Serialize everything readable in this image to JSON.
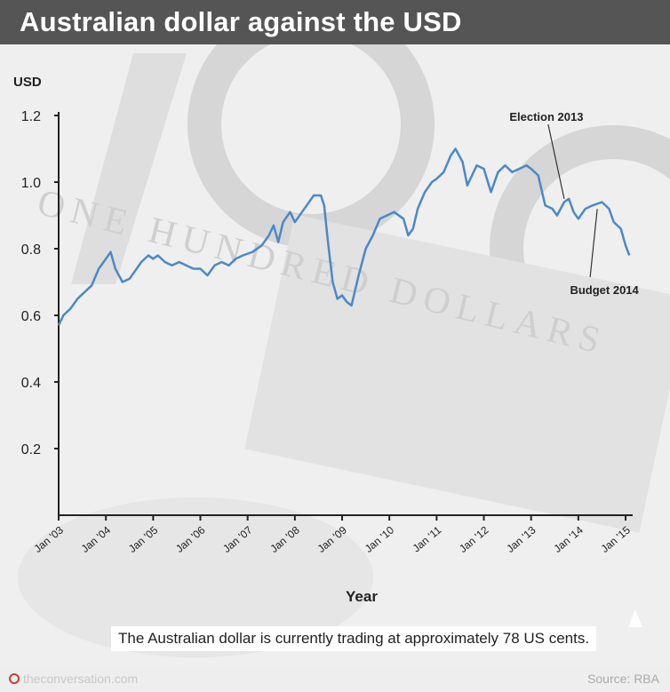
{
  "header": {
    "title": "Australian dollar against the USD"
  },
  "callout": {
    "text": "The Australian dollar is currently trading at approximately 78 US cents."
  },
  "footer": {
    "brand": "theconversation.com",
    "source": "Source: RBA",
    "brand_color": "#d33a2c"
  },
  "background_text": {
    "line1": "ONE HUNDRED DOLLARS"
  },
  "chart_data": {
    "type": "line",
    "ylabel": "USD",
    "xlabel": "Year",
    "ylim": [
      0,
      1.2
    ],
    "yticks": [
      "0.2",
      "0.4",
      "0.6",
      "0.8",
      "1.0",
      "1.2"
    ],
    "xticks": [
      "Jan '03",
      "Jan '04",
      "Jan '05",
      "Jan '06",
      "Jan '07",
      "Jan '08",
      "Jan '09",
      "Jan '10",
      "Jan '11",
      "Jan '12",
      "Jan '13",
      "Jan '14",
      "Jan '15"
    ],
    "line_color": "#4a89c8",
    "annotations": [
      {
        "text": "Election 2013",
        "x": 2013.7,
        "y": 0.95
      },
      {
        "text": "Budget 2014",
        "x": 2014.4,
        "y": 0.93
      }
    ],
    "series": [
      {
        "x": [
          2003.0,
          2003.1,
          2003.25,
          2003.4,
          2003.55,
          2003.7,
          2003.85,
          2004.0,
          2004.1,
          2004.2,
          2004.35,
          2004.5,
          2004.6,
          2004.75,
          2004.9,
          2005.0,
          2005.1,
          2005.25,
          2005.4,
          2005.55,
          2005.7,
          2005.85,
          2006.0,
          2006.15,
          2006.3,
          2006.45,
          2006.6,
          2006.75,
          2006.9,
          2007.1,
          2007.3,
          2007.45,
          2007.55,
          2007.65,
          2007.75,
          2007.9,
          2008.0,
          2008.1,
          2008.25,
          2008.4,
          2008.55,
          2008.62,
          2008.7,
          2008.8,
          2008.9,
          2009.0,
          2009.1,
          2009.2,
          2009.35,
          2009.5,
          2009.65,
          2009.8,
          2009.95,
          2010.1,
          2010.3,
          2010.4,
          2010.5,
          2010.6,
          2010.75,
          2010.9,
          2011.0,
          2011.15,
          2011.3,
          2011.4,
          2011.55,
          2011.65,
          2011.75,
          2011.85,
          2012.0,
          2012.15,
          2012.3,
          2012.45,
          2012.6,
          2012.75,
          2012.9,
          2013.0,
          2013.15,
          2013.3,
          2013.45,
          2013.55,
          2013.7,
          2013.8,
          2013.9,
          2014.0,
          2014.15,
          2014.3,
          2014.5,
          2014.65,
          2014.75,
          2014.9,
          2015.0,
          2015.08
        ],
        "y": [
          0.57,
          0.6,
          0.62,
          0.65,
          0.67,
          0.69,
          0.74,
          0.77,
          0.79,
          0.74,
          0.7,
          0.71,
          0.73,
          0.76,
          0.78,
          0.77,
          0.78,
          0.76,
          0.75,
          0.76,
          0.75,
          0.74,
          0.74,
          0.72,
          0.75,
          0.76,
          0.75,
          0.77,
          0.78,
          0.79,
          0.81,
          0.84,
          0.87,
          0.82,
          0.88,
          0.91,
          0.88,
          0.9,
          0.93,
          0.96,
          0.96,
          0.93,
          0.82,
          0.7,
          0.65,
          0.66,
          0.64,
          0.63,
          0.72,
          0.8,
          0.84,
          0.89,
          0.9,
          0.91,
          0.89,
          0.84,
          0.86,
          0.92,
          0.97,
          1.0,
          1.01,
          1.03,
          1.08,
          1.1,
          1.06,
          0.99,
          1.02,
          1.05,
          1.04,
          0.97,
          1.03,
          1.05,
          1.03,
          1.04,
          1.05,
          1.04,
          1.02,
          0.93,
          0.92,
          0.9,
          0.94,
          0.95,
          0.91,
          0.89,
          0.92,
          0.93,
          0.94,
          0.92,
          0.88,
          0.86,
          0.81,
          0.78
        ]
      }
    ]
  }
}
